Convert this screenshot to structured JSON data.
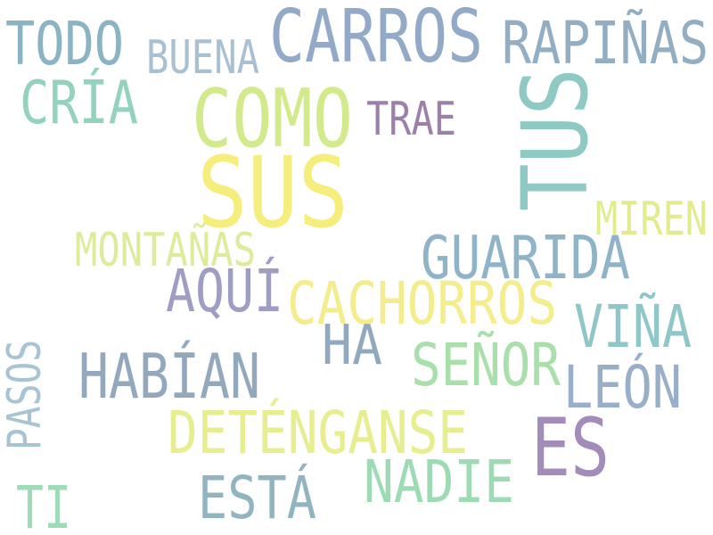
{
  "words": {
    "sus": {
      "text": "SUS",
      "color": "#f5ee7d"
    },
    "como": {
      "text": "COMO",
      "color": "#d2ea8c"
    },
    "tus": {
      "text": "TUS",
      "color": "#8ecac3"
    },
    "carros": {
      "text": "CARROS",
      "color": "#93a9c8"
    },
    "es": {
      "text": "ES",
      "color": "#a38bba"
    },
    "rapinas": {
      "text": "RAPIÑAS",
      "color": "#93adc2"
    },
    "todo": {
      "text": "TODO",
      "color": "#8ab3c4"
    },
    "guarida": {
      "text": "GUARIDA",
      "color": "#8fb3c7"
    },
    "cachorros": {
      "text": "CACHORROS",
      "color": "#f3ed8e"
    },
    "aqui": {
      "text": "AQUÍ",
      "color": "#9f9dc3"
    },
    "vina": {
      "text": "VIÑA",
      "color": "#8fc6c7"
    },
    "habian": {
      "text": "HABÍAN",
      "color": "#93a7bd"
    },
    "senor": {
      "text": "SEÑOR",
      "color": "#a9dfaa"
    },
    "leon": {
      "text": "LEÓN",
      "color": "#98aec9"
    },
    "ha": {
      "text": "HA",
      "color": "#91a9be"
    },
    "detenganse": {
      "text": "DETÉNGANSE",
      "color": "#e6ee8f"
    },
    "nadie": {
      "text": "NADIE",
      "color": "#9ddbb5"
    },
    "esta": {
      "text": "ESTÁ",
      "color": "#92b4c0"
    },
    "cria": {
      "text": "CRÍA",
      "color": "#93d2bd"
    },
    "buena": {
      "text": "BUENA",
      "color": "#a9bfd2"
    },
    "trae": {
      "text": "TRAE",
      "color": "#9c80a9"
    },
    "miren": {
      "text": "MIREN",
      "color": "#e2ec8e"
    },
    "montanas": {
      "text": "MONTAÑAS",
      "color": "#dfeb9c"
    },
    "pasos": {
      "text": "PASOS",
      "color": "#a8c3d4"
    },
    "ti": {
      "text": "TI",
      "color": "#9ddcb6"
    }
  }
}
